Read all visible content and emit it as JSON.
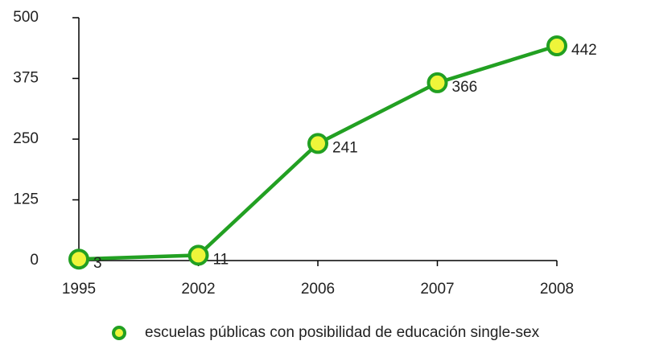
{
  "chart_data": {
    "type": "line",
    "categories": [
      "1995",
      "2002",
      "2006",
      "2007",
      "2008"
    ],
    "series": [
      {
        "name": "escuelas públicas con posibilidad de educación single-sex",
        "color": "#22a022",
        "marker_fill": "#eef53a",
        "values": [
          3,
          11,
          241,
          366,
          442
        ]
      }
    ],
    "ylim": [
      0,
      500
    ],
    "yticks": [
      0,
      125,
      250,
      375,
      500
    ],
    "grid": false,
    "legend": "bottom"
  }
}
